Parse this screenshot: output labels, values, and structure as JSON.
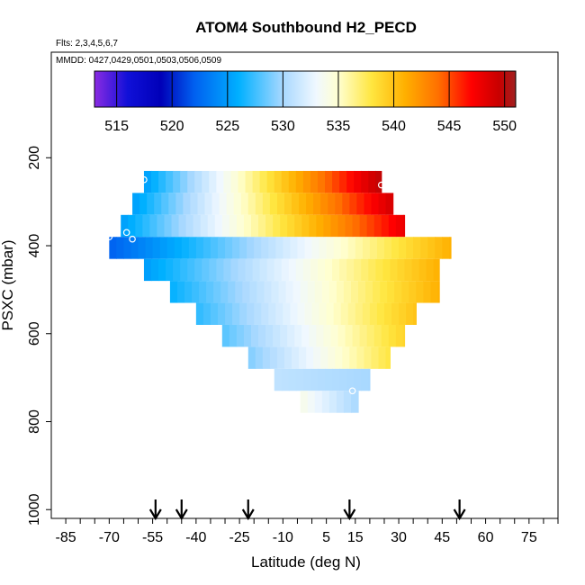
{
  "chart_data": {
    "type": "heatmap",
    "title": "ATOM4 Southbound H2_PECD",
    "flights_note": "Flts: 2,3,4,5,6,7",
    "dates_note": "MMDD: 0427,0429,0501,0503,0506,0509",
    "xlabel": "Latitude (deg N)",
    "ylabel": "PSXC (mbar)",
    "xlim": [
      -90,
      85
    ],
    "ylim": [
      1020,
      -40
    ],
    "x_tick_values": [
      -85,
      -70,
      -55,
      -40,
      -25,
      -10,
      5,
      15,
      30,
      45,
      60,
      75
    ],
    "x_tick_labels": [
      "-85",
      "-70",
      "-55",
      "-40",
      "-25",
      "-10",
      "5",
      "15",
      "30",
      "45",
      "60",
      "75"
    ],
    "x_minor_step": 5,
    "y_tick_values": [
      200,
      400,
      600,
      800,
      1000
    ],
    "y_tick_labels": [
      "200",
      "400",
      "600",
      "800",
      "1000"
    ],
    "colorbar": {
      "min": 513,
      "max": 551,
      "tick_values": [
        515,
        520,
        525,
        530,
        535,
        540,
        545,
        550
      ],
      "tick_labels": [
        "515",
        "520",
        "525",
        "530",
        "535",
        "540",
        "545",
        "550"
      ],
      "colors": [
        {
          "value": 513,
          "color": "#8a2be2"
        },
        {
          "value": 516,
          "color": "#1010d8"
        },
        {
          "value": 519,
          "color": "#0000b8"
        },
        {
          "value": 522,
          "color": "#0060f0"
        },
        {
          "value": 526,
          "color": "#00b0ff"
        },
        {
          "value": 530,
          "color": "#a8d8ff"
        },
        {
          "value": 533,
          "color": "#f0f8ff"
        },
        {
          "value": 535,
          "color": "#ffffd0"
        },
        {
          "value": 538,
          "color": "#ffe640"
        },
        {
          "value": 541,
          "color": "#ffb000"
        },
        {
          "value": 544,
          "color": "#ff7000"
        },
        {
          "value": 547,
          "color": "#ff0000"
        },
        {
          "value": 549.5,
          "color": "#c80000"
        },
        {
          "value": 551,
          "color": "#a02020"
        }
      ]
    },
    "field_bands": [
      {
        "p_top": 230,
        "p_bottom": 280,
        "lat_start": -58,
        "lat_end": 24,
        "val_start": 525,
        "val_end": 550
      },
      {
        "p_top": 280,
        "p_bottom": 330,
        "lat_start": -62,
        "lat_end": 28,
        "val_start": 525,
        "val_end": 549
      },
      {
        "p_top": 330,
        "p_bottom": 380,
        "lat_start": -66,
        "lat_end": 32,
        "val_start": 525,
        "val_end": 548
      },
      {
        "p_top": 380,
        "p_bottom": 430,
        "lat_start": -70,
        "lat_end": 48,
        "val_start": 522,
        "val_end": 541
      },
      {
        "p_top": 430,
        "p_bottom": 480,
        "lat_start": -58,
        "lat_end": 44,
        "val_start": 525,
        "val_end": 541
      },
      {
        "p_top": 480,
        "p_bottom": 530,
        "lat_start": -49,
        "lat_end": 44,
        "val_start": 526,
        "val_end": 541
      },
      {
        "p_top": 530,
        "p_bottom": 580,
        "lat_start": -40,
        "lat_end": 36,
        "val_start": 527,
        "val_end": 540
      },
      {
        "p_top": 580,
        "p_bottom": 630,
        "lat_start": -31,
        "lat_end": 32,
        "val_start": 528,
        "val_end": 539
      },
      {
        "p_top": 630,
        "p_bottom": 680,
        "lat_start": -22,
        "lat_end": 27,
        "val_start": 529,
        "val_end": 538
      },
      {
        "p_top": 680,
        "p_bottom": 730,
        "lat_start": -13,
        "lat_end": 20,
        "val_start": 531,
        "val_end": 530
      },
      {
        "p_top": 730,
        "p_bottom": 780,
        "lat_start": -4,
        "lat_end": 16,
        "val_start": 534,
        "val_end": 530
      }
    ],
    "markers": [
      {
        "lat": -58,
        "p": 250
      },
      {
        "lat": 24,
        "p": 262
      },
      {
        "lat": -64,
        "p": 370
      },
      {
        "lat": -70,
        "p": 380
      },
      {
        "lat": -62,
        "p": 385
      },
      {
        "lat": 48,
        "p": 440
      },
      {
        "lat": 14,
        "p": 730
      }
    ],
    "arrows_lat": [
      -54,
      -45,
      -22,
      13,
      51
    ]
  }
}
